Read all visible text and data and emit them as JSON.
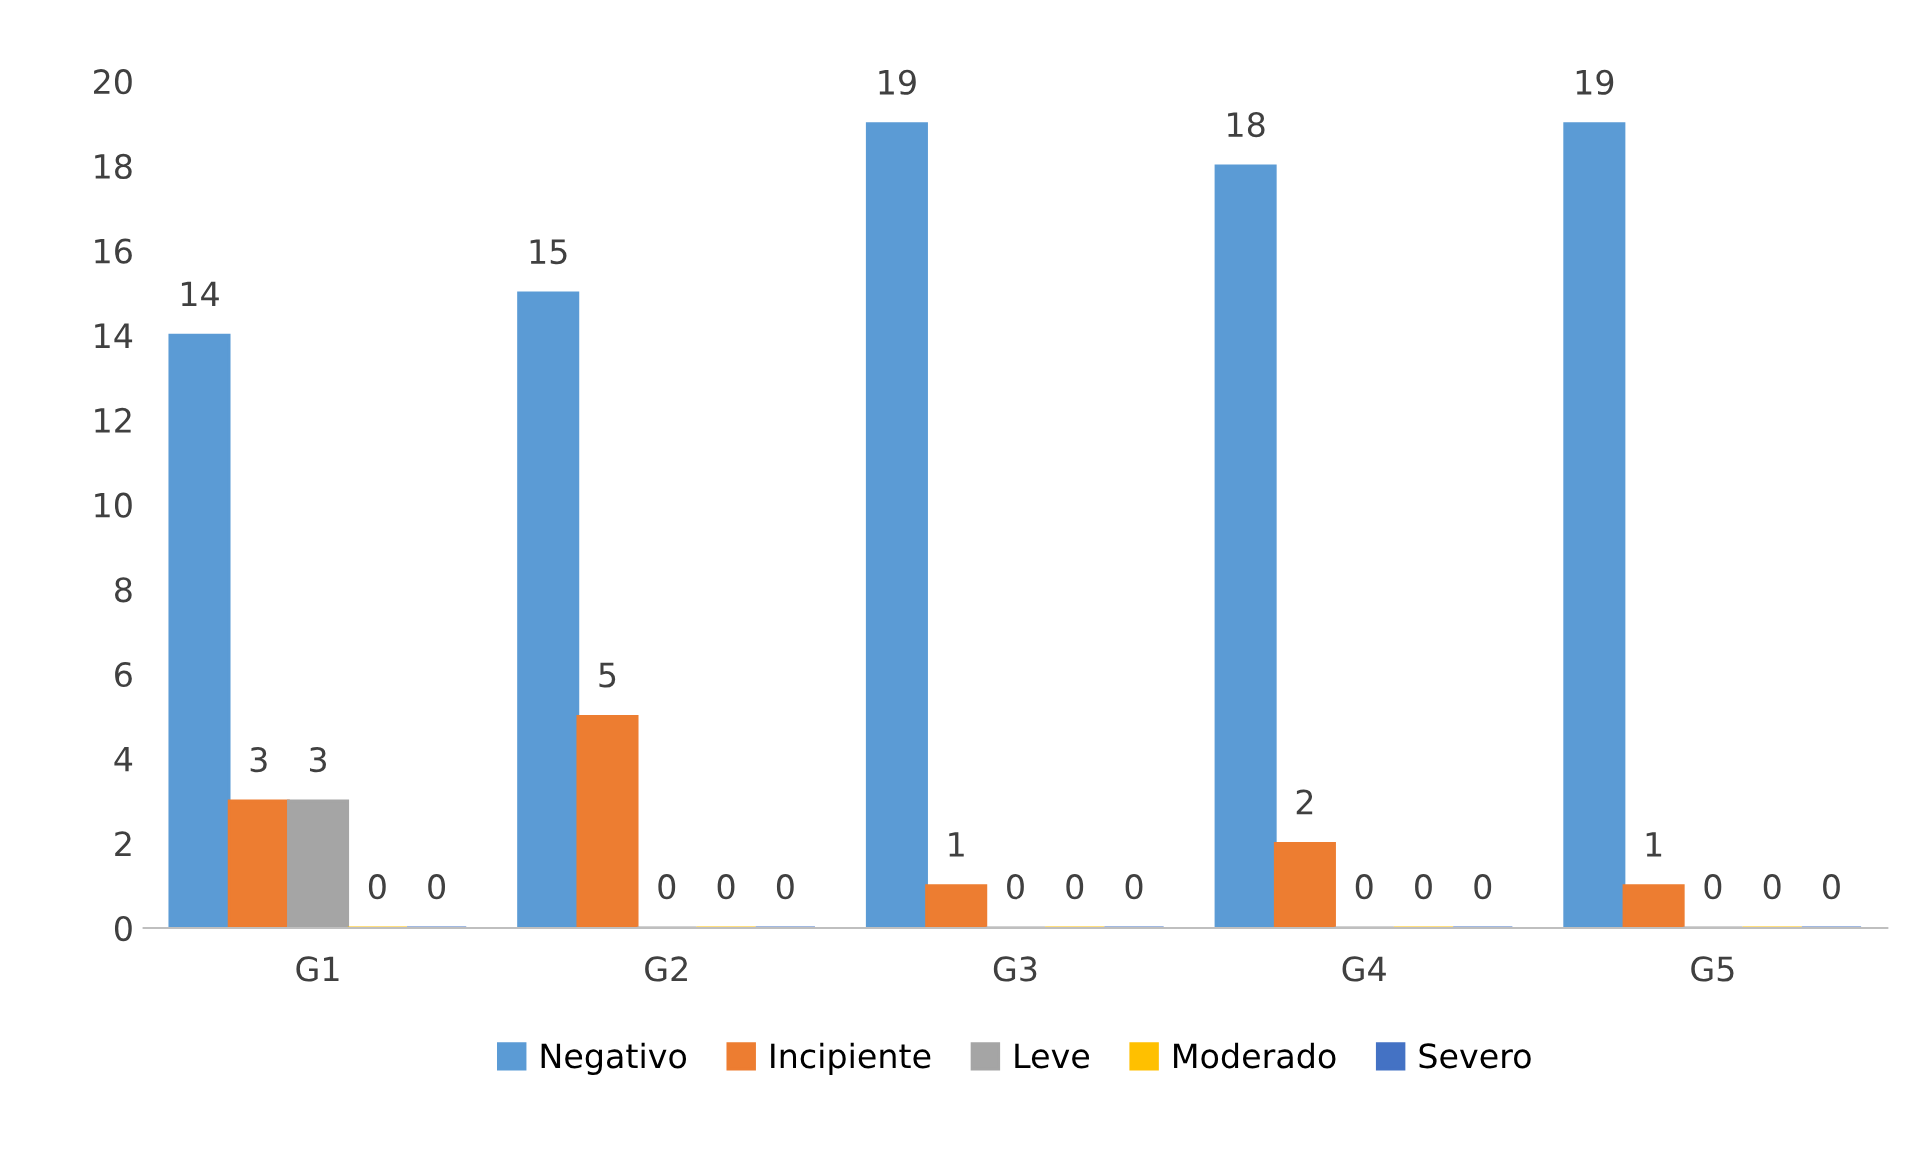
{
  "chart_data": {
    "type": "bar",
    "categories": [
      "G1",
      "G2",
      "G3",
      "G4",
      "G5"
    ],
    "series": [
      {
        "name": "Negativo",
        "color": "#5b9bd5",
        "values": [
          14,
          15,
          19,
          18,
          19
        ]
      },
      {
        "name": "Incipiente",
        "color": "#ed7d31",
        "values": [
          3,
          5,
          1,
          2,
          1
        ]
      },
      {
        "name": "Leve",
        "color": "#a5a5a5",
        "values": [
          3,
          0,
          0,
          0,
          0
        ]
      },
      {
        "name": "Moderado",
        "color": "#ffc000",
        "values": [
          0,
          0,
          0,
          0,
          0
        ]
      },
      {
        "name": "Severo",
        "color": "#4472c4",
        "values": [
          0,
          0,
          0,
          0,
          0
        ]
      }
    ],
    "ylim": [
      0,
      20
    ],
    "yticks": [
      0,
      2,
      4,
      6,
      8,
      10,
      12,
      14,
      16,
      18,
      20
    ],
    "grid": false,
    "legend": "bottom",
    "data_labels": true
  }
}
